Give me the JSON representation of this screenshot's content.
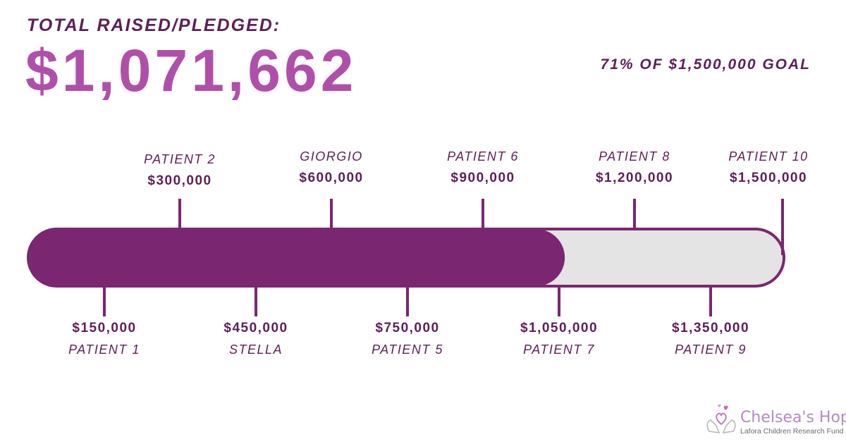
{
  "header": {
    "heading": "TOTAL RAISED/PLEDGED:",
    "total": "$1,071,662",
    "goal_text": "71% OF $1,500,000 GOAL"
  },
  "progress": {
    "raised": 1071662,
    "goal": 1500000,
    "fraction": 0.71
  },
  "milestones_top": [
    {
      "name": "PATIENT 2",
      "amount": "$300,000"
    },
    {
      "name": "GIORGIO",
      "amount": "$600,000"
    },
    {
      "name": "PATIENT 6",
      "amount": "$900,000"
    },
    {
      "name": "PATIENT 8",
      "amount": "$1,200,000"
    },
    {
      "name": "PATIENT 10",
      "amount": "$1,500,000"
    }
  ],
  "milestones_bottom": [
    {
      "name": "PATIENT 1",
      "amount": "$150,000"
    },
    {
      "name": "STELLA",
      "amount": "$450,000"
    },
    {
      "name": "PATIENT 5",
      "amount": "$750,000"
    },
    {
      "name": "PATIENT 7",
      "amount": "$1,050,000"
    },
    {
      "name": "PATIENT 9",
      "amount": "$1,350,000"
    }
  ],
  "logo": {
    "name": "Chelsea's Hope",
    "tagline": "Lafora Children Research Fund"
  },
  "colors": {
    "primary": "#7b2670",
    "accent": "#b04fa9",
    "track": "#e4e4e4",
    "text": "#5c1f57"
  }
}
